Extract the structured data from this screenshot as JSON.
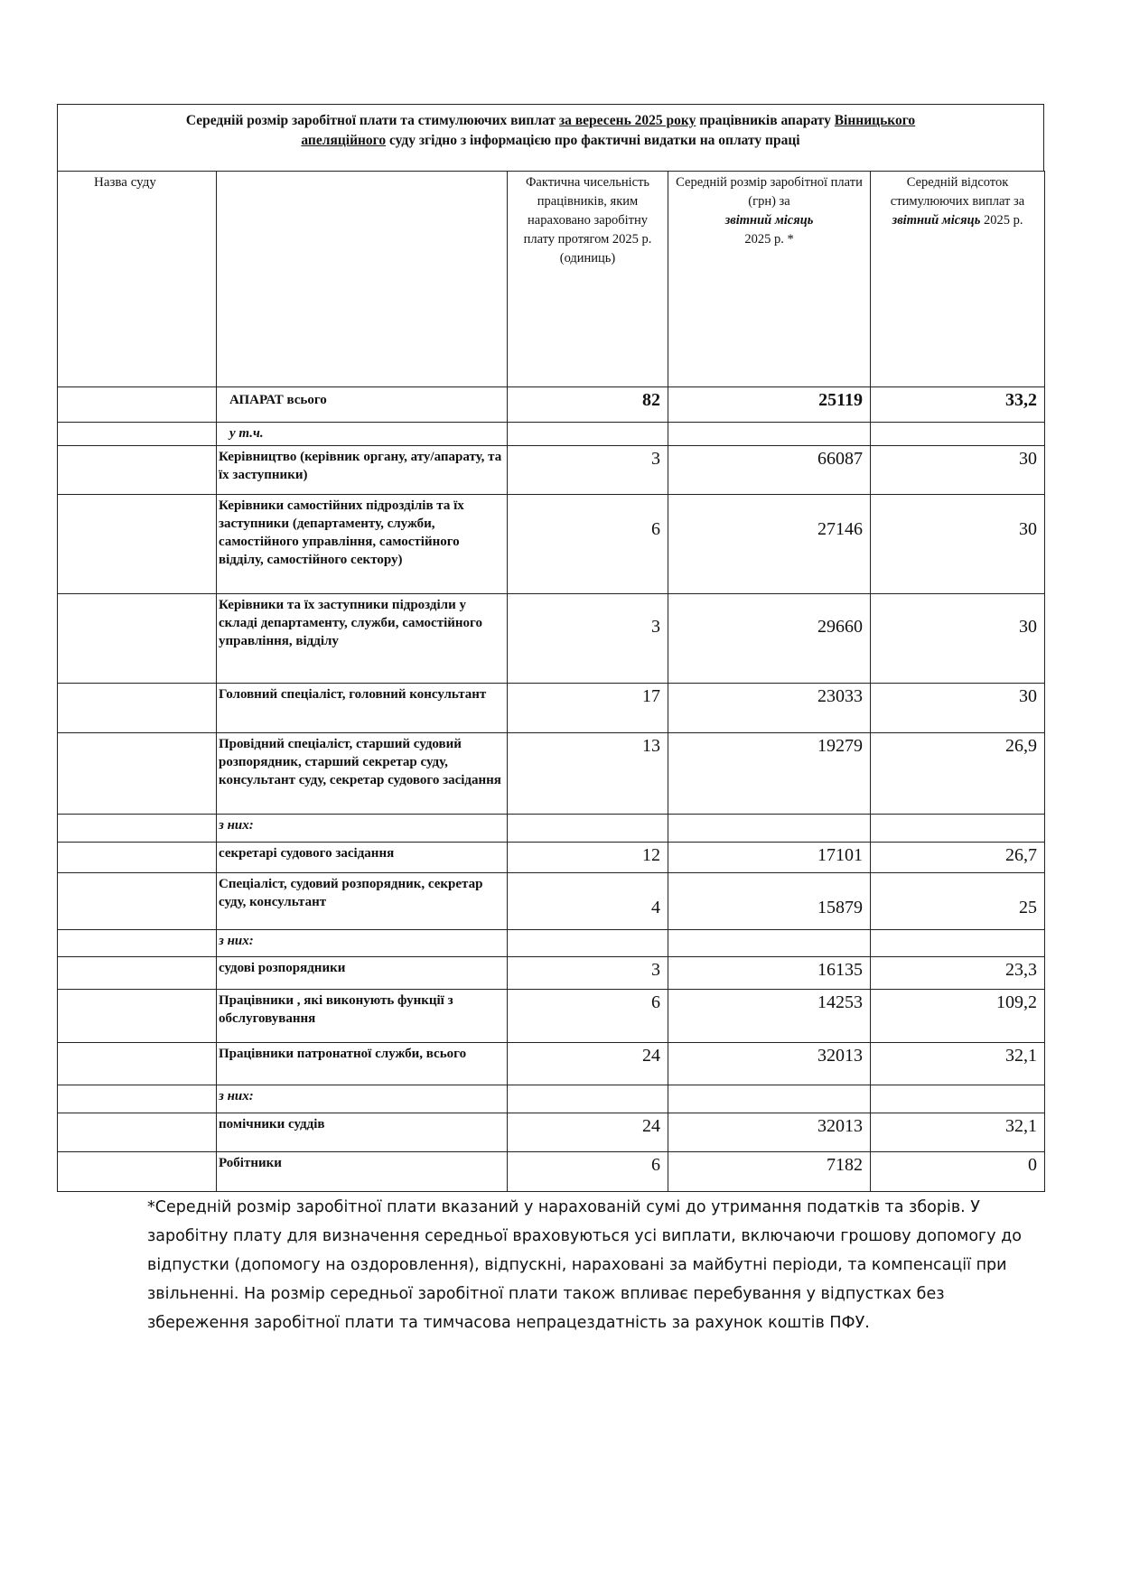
{
  "title": {
    "part1": "Середній розмір заробітної плати та стимулюючих виплат ",
    "period": "за  вересень 2025 року",
    "part2": "  працівників апарату ",
    "court1": "Вінницького",
    "court2": "апеляційного",
    "part3": " суду згідно з інформацією про фактичні видатки на оплату праці"
  },
  "headers": {
    "col1": "Назва суду",
    "col3_lines": "Фактична чисельність працівників, яким нараховано заробітну плату протягом 2025 р.  (одиниць)",
    "col4_a": "Середній розмір заробітної плати (грн) за",
    "col4_b": "звітний місяць",
    "col4_c": "2025 р. *",
    "col5_a": "Середній відсоток стимулюючих виплат за ",
    "col5_b": "звітний місяць",
    "col5_c": "  2025 р."
  },
  "rows": [
    {
      "label": "АПАРАТ всього",
      "count": "82",
      "salary": "25119",
      "percent": "33,2"
    },
    {
      "label": "у т.ч.",
      "count": "",
      "salary": "",
      "percent": ""
    },
    {
      "label": "Керівництво (керівник органу, ату/апарату, та їх заступники)",
      "count": "3",
      "salary": "66087",
      "percent": "30"
    },
    {
      "label": "Керівники самостійних підрозділів та їх заступники (департаменту, служби, самостійного управління, самостійного відділу, самостійного сектору)",
      "count": "6",
      "salary": "27146",
      "percent": "30"
    },
    {
      "label": "Керівники  та їх заступники підрозділи у складі департаменту, служби, самостійного управління, відділу",
      "count": "3",
      "salary": "29660",
      "percent": "30"
    },
    {
      "label": "Головний спеціаліст, головний консультант",
      "count": "17",
      "salary": "23033",
      "percent": "30"
    },
    {
      "label": "Провідний спеціаліст, старший судовий розпорядник, старший секретар суду, консультант суду, секретар судового засідання",
      "count": "13",
      "salary": "19279",
      "percent": "26,9"
    },
    {
      "label": "з них:",
      "count": "",
      "salary": "",
      "percent": ""
    },
    {
      "label": "секретарі судового засідання",
      "count": "12",
      "salary": "17101",
      "percent": "26,7"
    },
    {
      "label": "Спеціаліст, судовий розпорядник, секретар суду, консультант",
      "count": "4",
      "salary": "15879",
      "percent": "25"
    },
    {
      "label": "з них:",
      "count": "",
      "salary": "",
      "percent": ""
    },
    {
      "label": "судові розпорядники",
      "count": "3",
      "salary": "16135",
      "percent": "23,3"
    },
    {
      "label": "Працівники , які виконують функції з обслуговування",
      "count": "6",
      "salary": "14253",
      "percent": "109,2"
    },
    {
      "label": "Працівники патронатної служби, всього",
      "count": "24",
      "salary": "32013",
      "percent": "32,1"
    },
    {
      "label": "з них:",
      "count": "",
      "salary": "",
      "percent": ""
    },
    {
      "label": "помічники суддів",
      "count": "24",
      "salary": "32013",
      "percent": "32,1"
    },
    {
      "label": "Робітники",
      "count": "6",
      "salary": "7182",
      "percent": "0"
    }
  ],
  "footnote": "*Середній розмір заробітної плати вказаний у нарахованій сумі до утримання податків та зборів. У заробітну плату для визначення середньої враховуються усі виплати, включаючи грошову допомогу до відпустки (допомогу на оздоровлення), відпускні, нараховані за майбутні періоди, та компенсації при звільненні. На розмір середньої заробітної плати також впливає перебування у відпустках без збереження заробітної плати та тимчасова непрацездатність за рахунок коштів ПФУ."
}
